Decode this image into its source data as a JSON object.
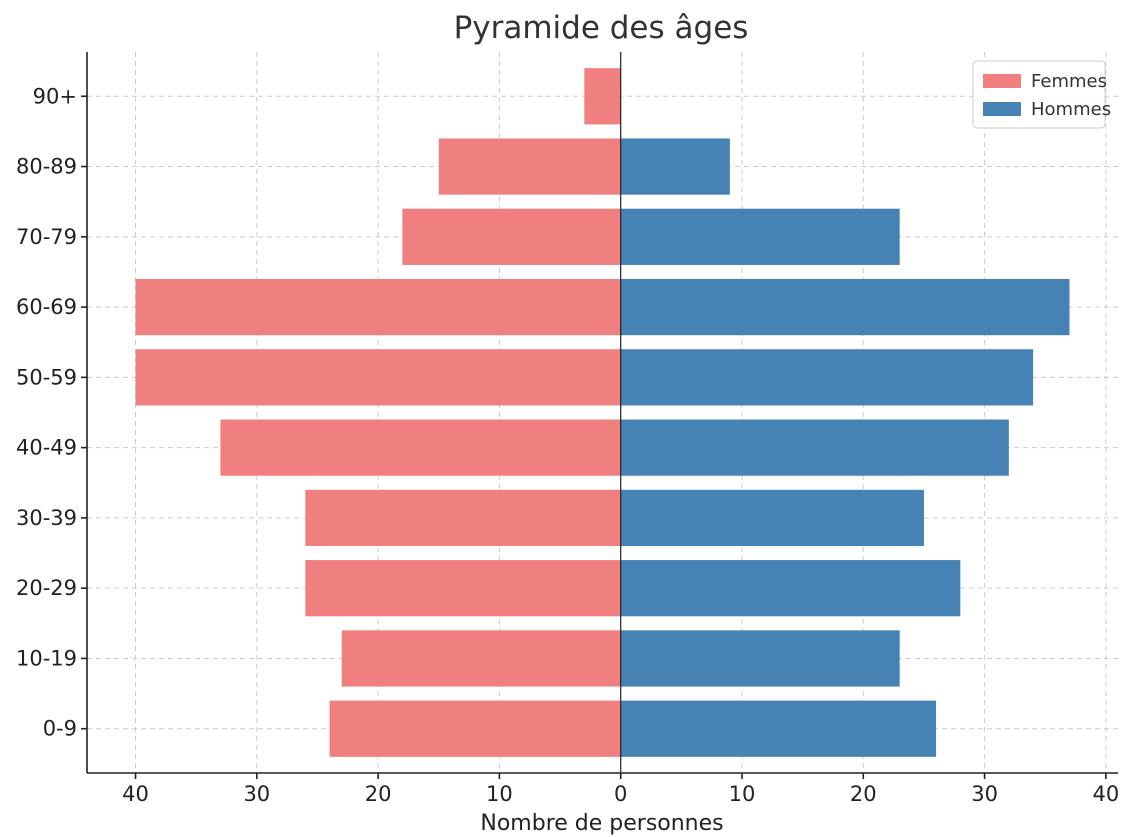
{
  "chart_data": {
    "type": "bar",
    "orientation": "horizontal",
    "title": "Pyramide des âges",
    "xlabel": "Nombre de personnes",
    "ylabel": "",
    "categories": [
      "0-9",
      "10-19",
      "20-29",
      "30-39",
      "40-49",
      "50-59",
      "60-69",
      "70-79",
      "80-89",
      "90+"
    ],
    "series": [
      {
        "name": "Femmes",
        "color": "#f08080",
        "side": "left",
        "values": [
          24,
          23,
          26,
          26,
          33,
          40,
          40,
          18,
          15,
          3
        ]
      },
      {
        "name": "Hommes",
        "color": "#4682b4",
        "side": "right",
        "values": [
          26,
          23,
          28,
          25,
          32,
          34,
          37,
          23,
          9,
          0
        ]
      }
    ],
    "xlim": [
      -44,
      41
    ],
    "xticks": [
      -40,
      -30,
      -20,
      -10,
      0,
      10,
      20,
      30,
      40
    ],
    "xtick_labels": [
      "40",
      "30",
      "20",
      "10",
      "0",
      "10",
      "20",
      "30",
      "40"
    ],
    "grid": true,
    "legend_position": "top-right"
  }
}
